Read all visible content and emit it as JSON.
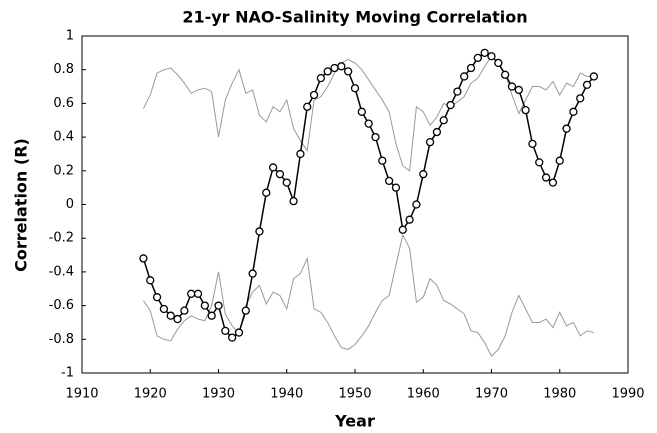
{
  "chart_data": {
    "type": "line",
    "title": "21-yr NAO-Salinity Moving Correlation",
    "x_label": "Year",
    "y_label": "Correlation (R)",
    "x": [
      1919,
      1920,
      1921,
      1922,
      1923,
      1924,
      1925,
      1926,
      1927,
      1928,
      1929,
      1930,
      1931,
      1932,
      1933,
      1934,
      1935,
      1936,
      1937,
      1938,
      1939,
      1940,
      1941,
      1942,
      1943,
      1944,
      1945,
      1946,
      1947,
      1948,
      1949,
      1950,
      1951,
      1952,
      1953,
      1954,
      1955,
      1956,
      1957,
      1958,
      1959,
      1960,
      1961,
      1962,
      1963,
      1964,
      1965,
      1966,
      1967,
      1968,
      1969,
      1970,
      1971,
      1972,
      1973,
      1974,
      1975,
      1976,
      1977,
      1978,
      1979,
      1980,
      1981,
      1982,
      1983,
      1984,
      1985
    ],
    "series": [
      {
        "color": "#999999",
        "values": [
          0.57,
          0.65,
          0.78,
          0.8,
          0.81,
          0.77,
          0.72,
          0.66,
          0.68,
          0.69,
          0.67,
          0.4,
          0.62,
          0.72,
          0.8,
          0.66,
          0.68,
          0.53,
          0.49,
          0.58,
          0.55,
          0.62,
          0.45,
          0.38,
          0.32,
          0.62,
          0.64,
          0.7,
          0.78,
          0.84,
          0.86,
          0.84,
          0.8,
          0.74,
          0.68,
          0.62,
          0.55,
          0.36,
          0.23,
          0.2,
          0.58,
          0.55,
          0.47,
          0.52,
          0.6,
          0.58,
          0.61,
          0.64,
          0.72,
          0.75,
          0.82,
          0.88,
          0.84,
          0.78,
          0.65,
          0.54,
          0.62,
          0.7,
          0.7,
          0.68,
          0.73,
          0.65,
          0.72,
          0.7,
          0.78,
          0.76,
          0.76
        ]
      },
      {
        "color": "#999999",
        "values": [
          -0.57,
          -0.63,
          -0.78,
          -0.8,
          -0.81,
          -0.74,
          -0.69,
          -0.66,
          -0.68,
          -0.69,
          -0.6,
          -0.4,
          -0.65,
          -0.72,
          -0.77,
          -0.6,
          -0.52,
          -0.48,
          -0.59,
          -0.52,
          -0.54,
          -0.62,
          -0.44,
          -0.41,
          -0.32,
          -0.62,
          -0.64,
          -0.7,
          -0.78,
          -0.85,
          -0.86,
          -0.83,
          -0.78,
          -0.72,
          -0.64,
          -0.57,
          -0.54,
          -0.36,
          -0.18,
          -0.26,
          -0.58,
          -0.55,
          -0.44,
          -0.48,
          -0.57,
          -0.59,
          -0.62,
          -0.65,
          -0.75,
          -0.76,
          -0.82,
          -0.9,
          -0.86,
          -0.78,
          -0.64,
          -0.54,
          -0.62,
          -0.7,
          -0.7,
          -0.68,
          -0.73,
          -0.64,
          -0.72,
          -0.7,
          -0.78,
          -0.75,
          -0.76
        ]
      },
      {
        "color": "#000000",
        "marker": "circle",
        "values": [
          -0.32,
          -0.45,
          -0.55,
          -0.62,
          -0.66,
          -0.68,
          -0.63,
          -0.53,
          -0.53,
          -0.6,
          -0.66,
          -0.6,
          -0.75,
          -0.79,
          -0.76,
          -0.63,
          -0.41,
          -0.16,
          0.07,
          0.22,
          0.18,
          0.13,
          0.02,
          0.3,
          0.58,
          0.65,
          0.75,
          0.79,
          0.81,
          0.82,
          0.79,
          0.69,
          0.55,
          0.48,
          0.4,
          0.26,
          0.14,
          0.1,
          -0.15,
          -0.09,
          0.0,
          0.18,
          0.37,
          0.43,
          0.5,
          0.59,
          0.67,
          0.76,
          0.81,
          0.87,
          0.9,
          0.88,
          0.84,
          0.77,
          0.7,
          0.68,
          0.56,
          0.36,
          0.25,
          0.16,
          0.13,
          0.26,
          0.45,
          0.55,
          0.63,
          0.71,
          0.76
        ]
      }
    ],
    "xlim": [
      1910,
      1990
    ],
    "xticks": [
      1910,
      1920,
      1930,
      1940,
      1950,
      1960,
      1970,
      1980,
      1990
    ],
    "ylim": [
      -1,
      1
    ],
    "yticks": [
      -1,
      -0.8,
      -0.6,
      -0.4,
      -0.2,
      0,
      0.2,
      0.4,
      0.6,
      0.8,
      1
    ],
    "grid": false
  }
}
